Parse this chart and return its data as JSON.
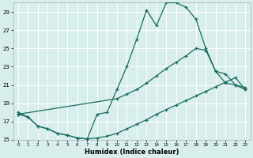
{
  "xlabel": "Humidex (Indice chaleur)",
  "bg_color": "#d8eeed",
  "grid_color": "#c8e0de",
  "line_color": "#1a6b60",
  "xlim": [
    -0.5,
    23.5
  ],
  "ylim": [
    15,
    30
  ],
  "xticks": [
    0,
    1,
    2,
    3,
    4,
    5,
    6,
    7,
    8,
    9,
    10,
    11,
    12,
    13,
    14,
    15,
    16,
    17,
    18,
    19,
    20,
    21,
    22,
    23
  ],
  "yticks": [
    15,
    17,
    19,
    21,
    23,
    25,
    27,
    29
  ],
  "line1_x": [
    0,
    1,
    2,
    3,
    4,
    5,
    6,
    7,
    8,
    9,
    10,
    11,
    12,
    13,
    14,
    15,
    16,
    17,
    18,
    19,
    20,
    21,
    22,
    23
  ],
  "line1_y": [
    18.0,
    17.5,
    16.5,
    16.2,
    15.7,
    15.5,
    15.2,
    15.1,
    17.8,
    18.0,
    20.5,
    23.0,
    26.0,
    29.2,
    27.5,
    30.0,
    30.0,
    29.5,
    28.2,
    25.0,
    22.5,
    21.2,
    21.0,
    20.7
  ],
  "line2_x": [
    0,
    10,
    11,
    12,
    13,
    14,
    15,
    16,
    17,
    18,
    19,
    20,
    21,
    22,
    23
  ],
  "line2_y": [
    17.8,
    19.5,
    20.0,
    20.5,
    21.2,
    22.0,
    22.8,
    23.5,
    24.2,
    25.0,
    24.8,
    22.5,
    22.2,
    21.0,
    20.5
  ],
  "line3_x": [
    0,
    1,
    2,
    3,
    4,
    5,
    6,
    7,
    8,
    9,
    10,
    11,
    12,
    13,
    14,
    15,
    16,
    17,
    18,
    19,
    20,
    21,
    22,
    23
  ],
  "line3_y": [
    17.8,
    17.5,
    16.5,
    16.2,
    15.7,
    15.5,
    15.2,
    15.1,
    15.2,
    15.4,
    15.7,
    16.2,
    16.7,
    17.2,
    17.8,
    18.3,
    18.8,
    19.3,
    19.8,
    20.3,
    20.8,
    21.3,
    21.8,
    20.5
  ]
}
